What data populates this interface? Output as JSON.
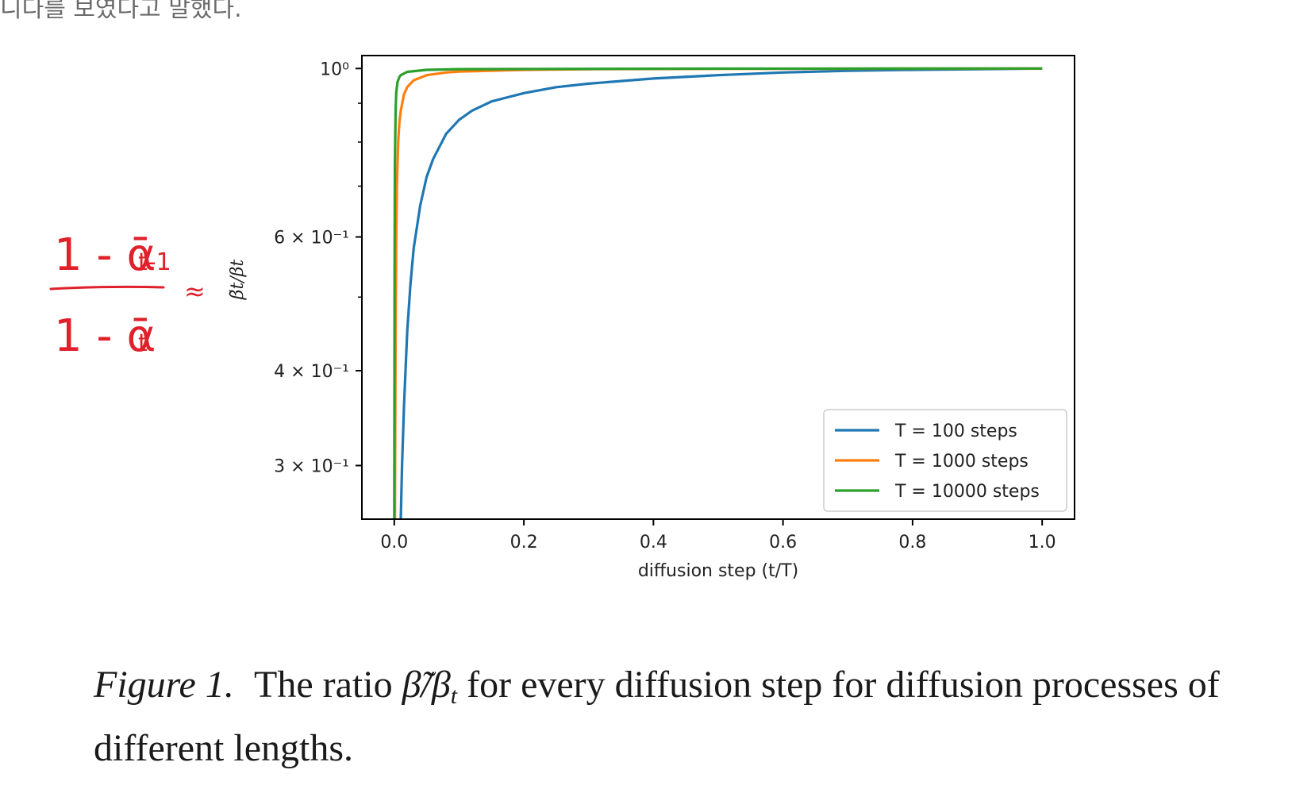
{
  "page_fragment": "니다를 보였다고 말했다.",
  "figure": {
    "label": "Figure 1.",
    "caption_before": "The ratio",
    "caption_ratio": "β̃/β",
    "caption_sub": "t",
    "caption_after": "for every diffusion step for diffusion processes of different lengths."
  },
  "handwriting": {
    "numerator": "1 - ᾱ",
    "numerator_sub": "t-1",
    "denominator": "1 - ᾱ",
    "denominator_sub": "t",
    "approx": "≈",
    "color": "#e0202a"
  },
  "chart_data": {
    "type": "line",
    "title": "",
    "xlabel": "diffusion step (t/T)",
    "ylabel": "β̃t/βt",
    "xlim": [
      -0.05,
      1.05
    ],
    "ylim": [
      0.255,
      1.04
    ],
    "yscale": "log",
    "x_ticks": [
      0.0,
      0.2,
      0.4,
      0.6,
      0.8,
      1.0
    ],
    "x_tick_labels": [
      "0.0",
      "0.2",
      "0.4",
      "0.6",
      "0.8",
      "1.0"
    ],
    "y_ticks": [
      1.0,
      0.6,
      0.4,
      0.3
    ],
    "y_tick_labels": [
      "10⁰",
      "6 × 10⁻¹",
      "4 × 10⁻¹",
      "3 × 10⁻¹"
    ],
    "y_minor_ticks": [
      0.9,
      0.8,
      0.7,
      0.5
    ],
    "grid": false,
    "legend_position": "lower-right",
    "series": [
      {
        "name": "T = 100 steps",
        "color": "#1f77b4",
        "x": [
          0.01,
          0.012,
          0.015,
          0.02,
          0.025,
          0.03,
          0.04,
          0.05,
          0.06,
          0.08,
          0.1,
          0.12,
          0.15,
          0.2,
          0.25,
          0.3,
          0.4,
          0.5,
          0.6,
          0.7,
          0.8,
          0.9,
          1.0
        ],
        "y": [
          0.255,
          0.3,
          0.36,
          0.45,
          0.52,
          0.58,
          0.66,
          0.72,
          0.76,
          0.82,
          0.856,
          0.88,
          0.905,
          0.928,
          0.945,
          0.955,
          0.97,
          0.98,
          0.988,
          0.993,
          0.996,
          0.998,
          1.0
        ]
      },
      {
        "name": "T = 1000 steps",
        "color": "#ff7f0e",
        "x": [
          0.001,
          0.002,
          0.003,
          0.004,
          0.006,
          0.008,
          0.01,
          0.015,
          0.02,
          0.03,
          0.05,
          0.08,
          0.1,
          0.2,
          0.3,
          0.5,
          1.0
        ],
        "y": [
          0.255,
          0.45,
          0.6,
          0.7,
          0.8,
          0.85,
          0.88,
          0.925,
          0.945,
          0.965,
          0.98,
          0.988,
          0.991,
          0.996,
          0.998,
          0.999,
          1.0
        ]
      },
      {
        "name": "T = 10000 steps",
        "color": "#2ca02c",
        "x": [
          0.0,
          0.0005,
          0.001,
          0.002,
          0.003,
          0.005,
          0.008,
          0.01,
          0.02,
          0.05,
          0.1,
          0.5,
          1.0
        ],
        "y": [
          0.255,
          0.55,
          0.75,
          0.88,
          0.93,
          0.96,
          0.975,
          0.98,
          0.99,
          0.996,
          0.998,
          0.9995,
          1.0
        ]
      }
    ]
  }
}
